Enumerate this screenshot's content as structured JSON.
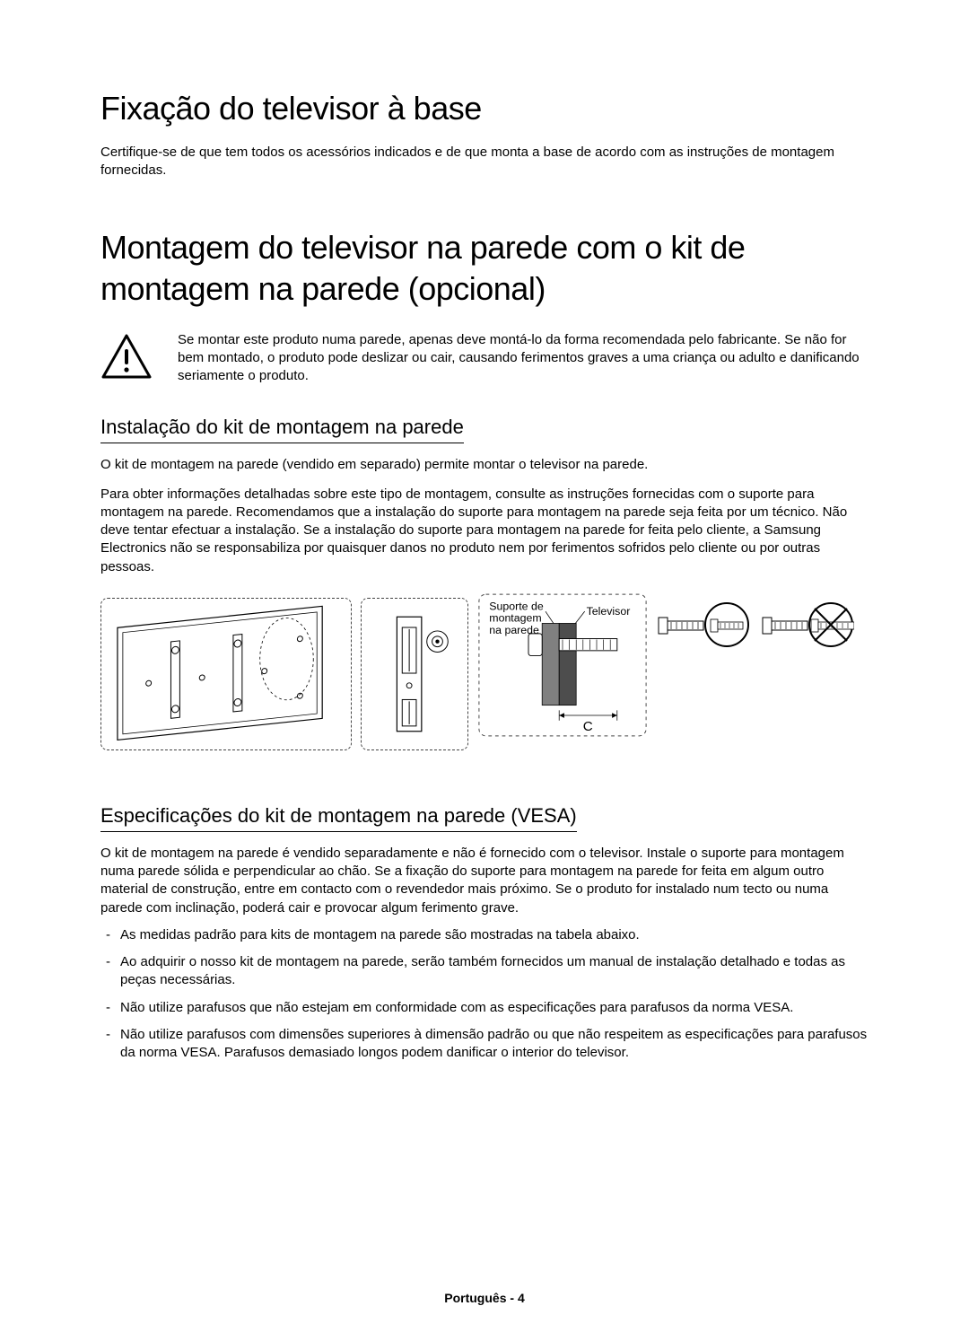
{
  "colors": {
    "text": "#000000",
    "background": "#ffffff",
    "rule": "#000000",
    "dash": "#444444",
    "fill_gray": "#b5b5b5",
    "fill_mid": "#808080",
    "fill_dark": "#4d4d4d"
  },
  "typography": {
    "h1_fontsize": 36,
    "h2_fontsize": 22,
    "body_fontsize": 15,
    "label_fontsize": 13,
    "footer_fontsize": 14,
    "font_family": "Arial"
  },
  "heading1": "Fixação do televisor à base",
  "para1": "Certifique-se de que tem todos os acessórios indicados e de que monta a base de acordo com as instruções de montagem fornecidas.",
  "heading2": "Montagem do televisor na parede com o kit de montagem na parede (opcional)",
  "warning": {
    "text": "Se montar este produto numa parede, apenas deve montá-lo da forma recomendada pelo fabricante. Se não for bem montado, o produto pode deslizar ou cair, causando ferimentos graves a uma criança ou adulto e danificando seriamente o produto.",
    "icon": "warning-triangle"
  },
  "section_install": {
    "title": "Instalação do kit de montagem na parede",
    "p1": "O kit de montagem na parede (vendido em separado) permite montar o televisor na parede.",
    "p2": "Para obter informações detalhadas sobre este tipo de montagem, consulte as instruções fornecidas com o suporte para montagem na parede. Recomendamos que a instalação do suporte para montagem na parede seja feita por um técnico. Não deve tentar efectuar a instalação. Se a instalação do suporte para montagem na parede for feita pelo cliente, a Samsung Electronics não se responsabiliza por quaisquer danos no produto nem por ferimentos sofridos pelo cliente ou por outras pessoas."
  },
  "figure": {
    "panel_a": {
      "desc": "tv-rear-with-mount-brackets"
    },
    "panel_b": {
      "desc": "bracket-detail-zoom"
    },
    "panel_c": {
      "label_left": "Suporte de montagem na parede",
      "label_right": "Televisor",
      "letter": "C"
    },
    "bolts": {
      "ok_desc": "correct-screw-length",
      "bad_desc": "incorrect-screw-length-crossed"
    }
  },
  "section_vesa": {
    "title": "Especificações do kit de montagem na parede (VESA)",
    "p1": "O kit de montagem na parede é vendido separadamente e não é fornecido com o televisor. Instale o suporte para montagem numa parede sólida e perpendicular ao chão. Se a fixação do suporte para montagem na parede for feita em algum outro material de construção, entre em contacto com o revendedor mais próximo. Se o produto for instalado num tecto ou numa parede com inclinação, poderá cair e provocar algum ferimento grave.",
    "bullets": [
      "As medidas padrão para kits de montagem na parede são mostradas na tabela abaixo.",
      "Ao adquirir o nosso kit de montagem na parede, serão também fornecidos um manual de instalação detalhado e todas as peças necessárias.",
      "Não utilize parafusos que não estejam em conformidade com as especificações para parafusos da norma VESA.",
      "Não utilize parafusos com dimensões superiores à dimensão padrão ou que não respeitem as especificações para parafusos da norma VESA. Parafusos demasiado longos podem danificar o interior do televisor."
    ]
  },
  "footer": {
    "language": "Português",
    "separator": " - ",
    "page": "4"
  }
}
